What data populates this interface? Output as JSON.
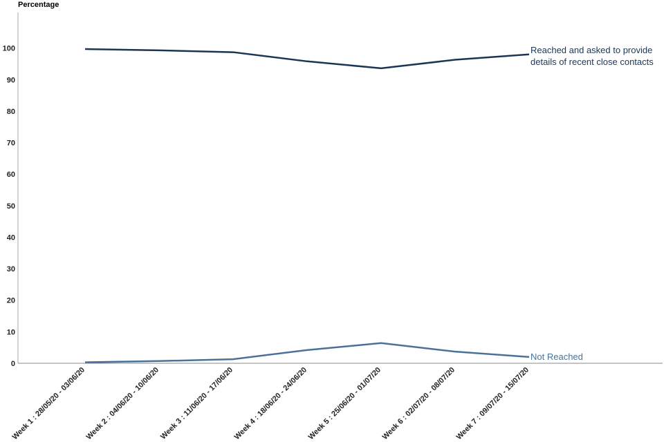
{
  "chart_data": {
    "type": "line",
    "y_label": "Percentage",
    "categories": [
      "Week 1 : 28/05/20 - 03/06/20",
      "Week 2 : 04/06/20 - 10/06/20",
      "Week 3 : 11/06/20 - 17/06/20",
      "Week 4 : 18/06/20 - 24/06/20",
      "Week 5 : 25/06/20 - 01/07/20",
      "Week 6 : 02/07/20 - 08/07/20",
      "Week 7 : 09/07/20 - 15/07/20"
    ],
    "series": [
      {
        "name": "Reached and asked to provide details of recent close contacts",
        "color": "#1b3655",
        "values": [
          99.7,
          99.3,
          98.7,
          95.8,
          93.6,
          96.3,
          98.0
        ]
      },
      {
        "name": "Not Reached",
        "color": "#4a7298",
        "values": [
          0.3,
          0.7,
          1.3,
          4.2,
          6.4,
          3.7,
          2.0
        ]
      }
    ],
    "ylim": [
      0,
      110
    ],
    "yticks": [
      0,
      10,
      20,
      30,
      40,
      50,
      60,
      70,
      80,
      90,
      100
    ],
    "grid": false
  }
}
